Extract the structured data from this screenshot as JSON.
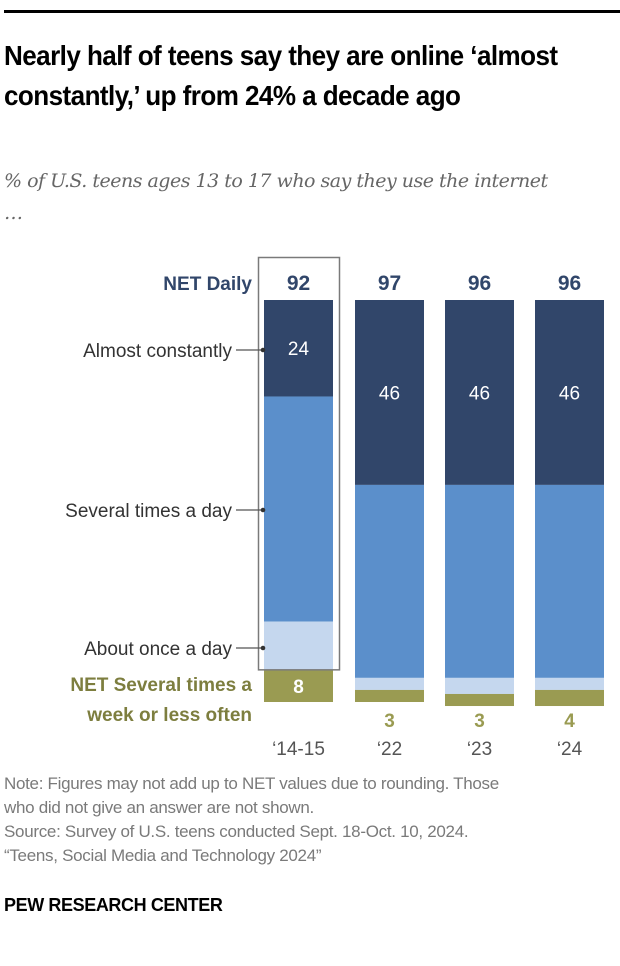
{
  "header": {
    "title": "Nearly half of teens say they are online ‘almost constantly,’ up from 24% a decade ago",
    "subtitle": "% of U.S. teens ages 13 to 17 who say they use the internet …"
  },
  "colors": {
    "almost_constantly": "#31466a",
    "several_times_a_day": "#5b8fcb",
    "about_once_a_day": "#c5d7ee",
    "net_weekly_or_less": "#9a9b52",
    "net_daily_label": "#31466a",
    "net_weekly_label": "#7d7e3f",
    "highlight_box": "#7a7a7a"
  },
  "chart_data": {
    "type": "bar",
    "stacked": true,
    "title": "Nearly half of teens say they are online ‘almost constantly,’ up from 24% a decade ago",
    "subtitle": "% of U.S. teens ages 13 to 17 who say they use the internet …",
    "categories": [
      "‘14-15",
      "‘22",
      "‘23",
      "‘24"
    ],
    "highlighted_category": "‘14-15",
    "series": [
      {
        "name": "Almost constantly",
        "values": [
          24,
          46,
          46,
          46
        ],
        "labels": [
          "24",
          "46",
          "46",
          "46"
        ]
      },
      {
        "name": "Several times a day",
        "values": [
          56,
          48,
          48,
          48
        ],
        "labels": [
          "",
          "",
          "",
          ""
        ]
      },
      {
        "name": "About once a day",
        "values": [
          12,
          3,
          4,
          3
        ],
        "labels": [
          "",
          "",
          "",
          ""
        ]
      },
      {
        "name": "NET Several times a week or less often",
        "values": [
          8,
          3,
          3,
          4
        ],
        "labels": [
          "8",
          "3",
          "3",
          "4"
        ]
      }
    ],
    "net_daily": {
      "label": "NET Daily",
      "values": [
        92,
        97,
        96,
        96
      ]
    },
    "net_weekly_label_lines": [
      "NET Several times a",
      "week or less often"
    ],
    "xlabel": "",
    "ylabel": "",
    "ylim": [
      0,
      100
    ],
    "grid": false,
    "legend": "inline-left"
  },
  "footer": {
    "note_lines": [
      "Note: Figures may not add up to NET values due to rounding. Those",
      "who did not give an answer are not shown.",
      "Source: Survey of U.S. teens conducted Sept. 18-Oct. 10, 2024.",
      "“Teens, Social Media and Technology 2024”"
    ],
    "brand": "PEW RESEARCH CENTER"
  }
}
